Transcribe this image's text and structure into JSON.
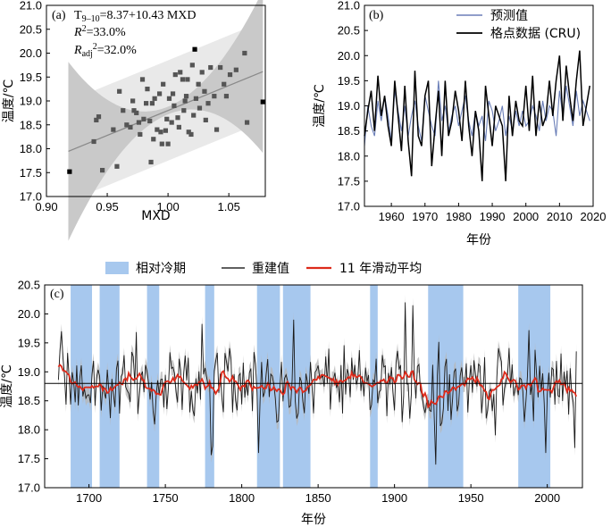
{
  "chart_data": [
    {
      "panel": "(a)",
      "type": "scatter",
      "xlabel": "MXD",
      "ylabel": "温度/℃",
      "xlim": [
        0.9,
        1.08
      ],
      "ylim": [
        17.0,
        21.0
      ],
      "xticks": [
        "0.90",
        "0.95",
        "1.00",
        "1.05"
      ],
      "yticks": [
        "17.0",
        "17.5",
        "18.0",
        "18.5",
        "19.0",
        "19.5",
        "20.0",
        "20.5",
        "21.0"
      ],
      "equation": {
        "base": "T",
        "sub": "9–10",
        "rhs": "=8.37+10.43 MXD"
      },
      "r2": {
        "base": "R",
        "sup": "2",
        "rhs": "=33.0%"
      },
      "r2adj": {
        "base": "R",
        "sub": "adj",
        "sup": "2",
        "rhs": "=32.0%"
      },
      "fit": {
        "intercept": 8.37,
        "slope": 10.43
      },
      "points": [
        [
          0.919,
          17.52
        ],
        [
          0.939,
          18.15
        ],
        [
          0.941,
          18.6
        ],
        [
          0.943,
          18.67
        ],
        [
          0.946,
          17.55
        ],
        [
          0.955,
          18.4
        ],
        [
          0.958,
          17.63
        ],
        [
          0.96,
          19.2
        ],
        [
          0.963,
          18.8
        ],
        [
          0.966,
          18.5
        ],
        [
          0.969,
          18.45
        ],
        [
          0.971,
          19.0
        ],
        [
          0.972,
          18.8
        ],
        [
          0.974,
          18.75
        ],
        [
          0.976,
          18.55
        ],
        [
          0.977,
          18.3
        ],
        [
          0.979,
          19.45
        ],
        [
          0.98,
          18.62
        ],
        [
          0.982,
          18.95
        ],
        [
          0.983,
          19.25
        ],
        [
          0.985,
          18.58
        ],
        [
          0.986,
          17.72
        ],
        [
          0.987,
          18.95
        ],
        [
          0.988,
          18.2
        ],
        [
          0.989,
          19.05
        ],
        [
          0.991,
          18.4
        ],
        [
          0.993,
          19.15
        ],
        [
          0.994,
          18.35
        ],
        [
          0.995,
          18.1
        ],
        [
          0.996,
          19.35
        ],
        [
          0.998,
          18.38
        ],
        [
          0.999,
          18.62
        ],
        [
          1.0,
          18.1
        ],
        [
          1.001,
          19.05
        ],
        [
          1.003,
          18.55
        ],
        [
          1.004,
          19.15
        ],
        [
          1.005,
          18.9
        ],
        [
          1.006,
          19.55
        ],
        [
          1.008,
          18.65
        ],
        [
          1.009,
          18.45
        ],
        [
          1.01,
          19.6
        ],
        [
          1.012,
          19.45
        ],
        [
          1.013,
          18.8
        ],
        [
          1.014,
          19.0
        ],
        [
          1.015,
          19.1
        ],
        [
          1.016,
          19.45
        ],
        [
          1.017,
          18.35
        ],
        [
          1.019,
          18.3
        ],
        [
          1.02,
          19.75
        ],
        [
          1.021,
          18.7
        ],
        [
          1.022,
          20.08
        ],
        [
          1.023,
          19.05
        ],
        [
          1.025,
          19.35
        ],
        [
          1.026,
          18.85
        ],
        [
          1.028,
          19.6
        ],
        [
          1.03,
          19.2
        ],
        [
          1.031,
          18.6
        ],
        [
          1.033,
          18.95
        ],
        [
          1.035,
          19.7
        ],
        [
          1.038,
          19.1
        ],
        [
          1.04,
          18.4
        ],
        [
          1.043,
          19.7
        ],
        [
          1.046,
          19.35
        ],
        [
          1.048,
          19.1
        ],
        [
          1.051,
          19.55
        ],
        [
          1.056,
          19.65
        ],
        [
          1.063,
          20.0
        ],
        [
          1.065,
          18.55
        ],
        [
          1.078,
          18.98
        ]
      ]
    },
    {
      "panel": "(b)",
      "type": "line",
      "xlabel": "年份",
      "ylabel": "温度/℃",
      "xlim": [
        1952,
        2020
      ],
      "ylim": [
        17.0,
        21.0
      ],
      "xticks": [
        "1960",
        "1970",
        "1980",
        "1990",
        "2000",
        "2010",
        "2020"
      ],
      "yticks": [
        "17.0",
        "17.5",
        "18.0",
        "18.5",
        "19.0",
        "19.5",
        "20.0",
        "20.5",
        "21.0"
      ],
      "start_year": 1952,
      "series": [
        {
          "name": "预测值",
          "color": "#6b7fb8",
          "values": [
            18.2,
            19.0,
            18.6,
            18.4,
            19.1,
            18.7,
            19.2,
            18.8,
            18.3,
            19.3,
            18.9,
            18.5,
            19.0,
            18.4,
            18.8,
            19.1,
            18.6,
            18.3,
            19.2,
            18.9,
            18.6,
            18.4,
            19.5,
            18.7,
            19.0,
            18.5,
            18.8,
            19.0,
            18.6,
            18.9,
            19.2,
            18.7,
            18.4,
            18.9,
            18.6,
            18.8,
            18.3,
            19.1,
            18.9,
            18.5,
            18.7,
            19.0,
            18.4,
            18.8,
            18.5,
            18.9,
            18.6,
            18.9,
            18.6,
            18.7,
            19.0,
            18.8,
            18.5,
            19.1,
            18.7,
            19.0,
            18.9,
            18.4,
            19.3,
            18.8,
            19.4,
            19.0,
            18.6,
            19.3,
            18.8,
            19.1,
            18.9,
            18.7
          ]
        },
        {
          "name": "格点数据 (CRU)",
          "color": "#000000",
          "values": [
            18.4,
            18.9,
            19.3,
            18.5,
            19.6,
            18.8,
            19.2,
            18.6,
            18.2,
            19.5,
            18.8,
            18.1,
            19.4,
            18.3,
            17.6,
            19.7,
            18.4,
            18.2,
            19.2,
            19.5,
            17.8,
            18.6,
            19.3,
            18.0,
            19.5,
            18.4,
            18.7,
            19.3,
            18.9,
            18.3,
            19.5,
            18.6,
            18.0,
            18.9,
            18.5,
            17.5,
            19.4,
            18.8,
            18.2,
            19.0,
            18.8,
            18.6,
            17.5,
            19.2,
            18.4,
            19.1,
            18.7,
            18.6,
            19.4,
            18.5,
            19.6,
            18.4,
            19.1,
            18.6,
            18.8,
            19.5,
            18.8,
            19.5,
            20.0,
            18.7,
            19.8,
            19.2,
            18.7,
            19.5,
            20.1,
            18.6,
            19.0,
            19.4
          ]
        }
      ],
      "legend": [
        "预测值",
        "格点数据 (CRU)"
      ]
    },
    {
      "panel": "(c)",
      "type": "line",
      "xlabel": "年份",
      "ylabel": "温度/℃",
      "xlim": [
        1671,
        2023
      ],
      "ylim": [
        17.0,
        20.5
      ],
      "xticks": [
        "1700",
        "1750",
        "1800",
        "1850",
        "1900",
        "1950",
        "2000"
      ],
      "yticks": [
        "17.0",
        "17.5",
        "18.0",
        "18.5",
        "19.0",
        "19.5",
        "20.0",
        "20.5"
      ],
      "mean_line": 18.8,
      "cold_periods": [
        [
          1688,
          1702
        ],
        [
          1707,
          1720
        ],
        [
          1738,
          1746
        ],
        [
          1776,
          1782
        ],
        [
          1810,
          1825
        ],
        [
          1827,
          1845
        ],
        [
          1884,
          1889
        ],
        [
          1922,
          1945
        ],
        [
          1981,
          2002
        ]
      ],
      "legend": [
        "相对冷期",
        "重建值",
        "11 年滑动平均"
      ],
      "start_year": 1680,
      "end_year": 2019
    }
  ],
  "colors": {
    "cold": "#a7c8ee",
    "recon": "#1a1a1a",
    "band": "#b8b8b8",
    "smooth": "#dd2a1a",
    "blue": "#6b7fb8"
  }
}
